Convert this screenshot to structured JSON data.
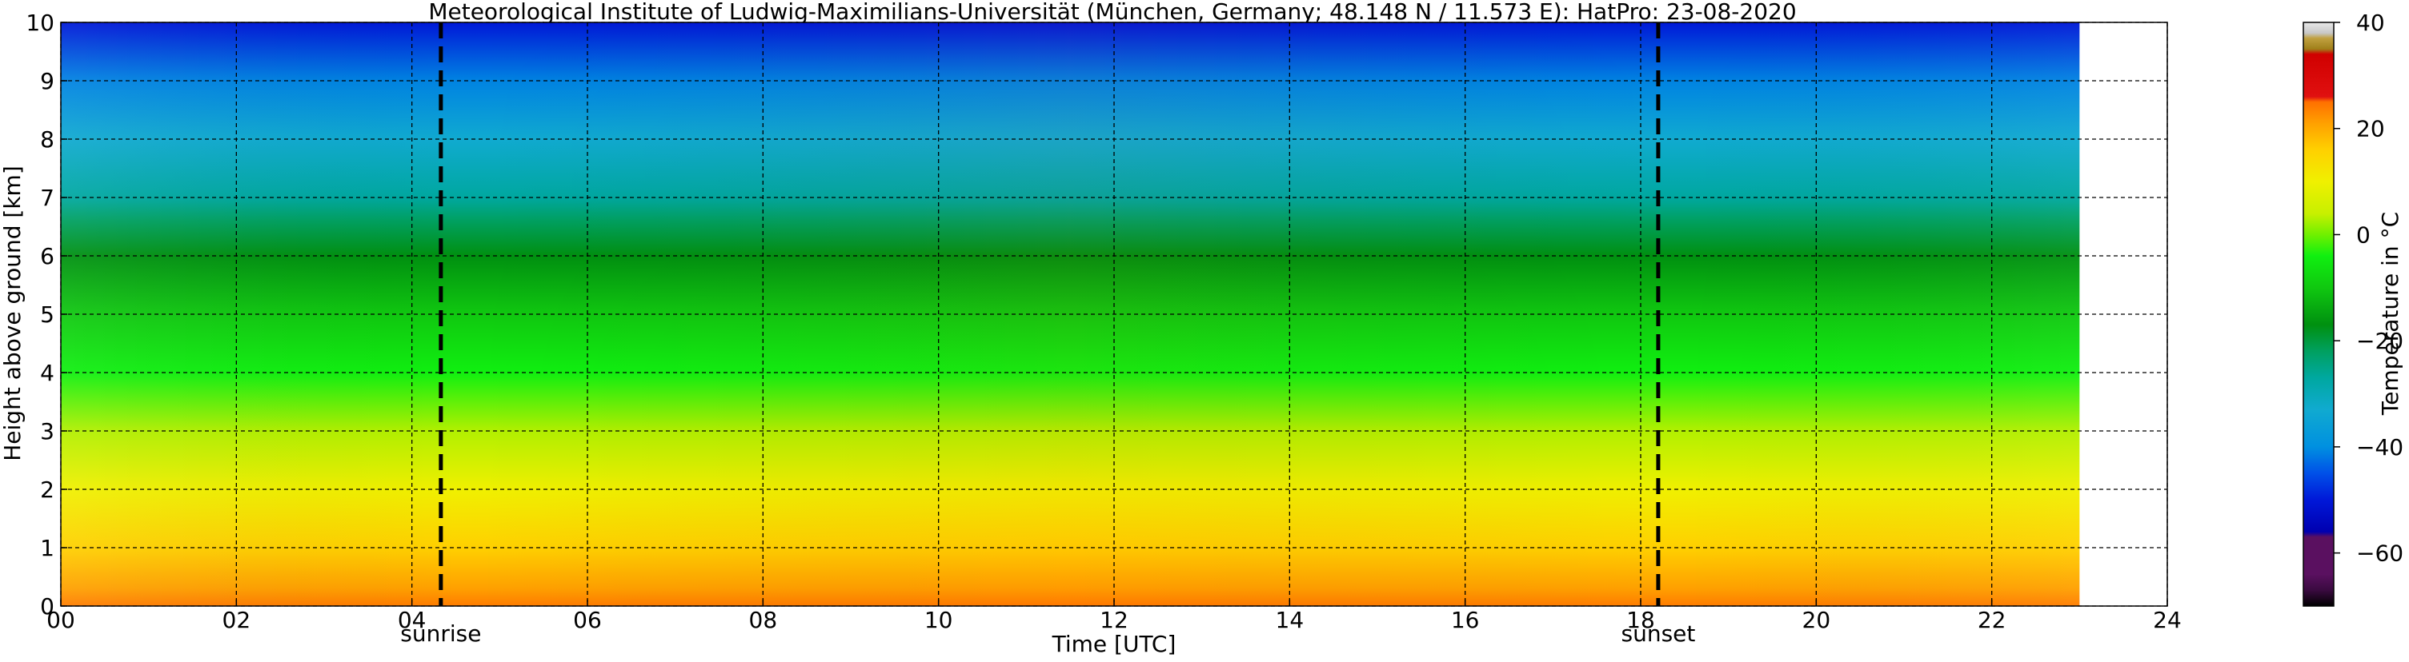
{
  "chart_data": {
    "type": "heatmap",
    "title": "Meteorological Institute of Ludwig-Maximilians-Universität (München, Germany; 48.148 N / 11.573 E):    HatPro: 23-08-2020",
    "xlabel": "Time [UTC]",
    "ylabel": "Height above ground [km]",
    "xlim": [
      0,
      24
    ],
    "ylim": [
      0,
      10
    ],
    "x_ticks": [
      {
        "value": 0,
        "label": "00"
      },
      {
        "value": 2,
        "label": "02"
      },
      {
        "value": 4,
        "label": "04"
      },
      {
        "value": 6,
        "label": "06"
      },
      {
        "value": 8,
        "label": "08"
      },
      {
        "value": 10,
        "label": "10"
      },
      {
        "value": 12,
        "label": "12"
      },
      {
        "value": 14,
        "label": "14"
      },
      {
        "value": 16,
        "label": "16"
      },
      {
        "value": 18,
        "label": "18"
      },
      {
        "value": 20,
        "label": "20"
      },
      {
        "value": 22,
        "label": "22"
      },
      {
        "value": 24,
        "label": "24"
      }
    ],
    "y_ticks": [
      {
        "value": 0,
        "label": "0"
      },
      {
        "value": 1,
        "label": "1"
      },
      {
        "value": 2,
        "label": "2"
      },
      {
        "value": 3,
        "label": "3"
      },
      {
        "value": 4,
        "label": "4"
      },
      {
        "value": 5,
        "label": "5"
      },
      {
        "value": 6,
        "label": "6"
      },
      {
        "value": 7,
        "label": "7"
      },
      {
        "value": 8,
        "label": "8"
      },
      {
        "value": 9,
        "label": "9"
      },
      {
        "value": 10,
        "label": "10"
      }
    ],
    "grid": true,
    "data_time_range": [
      0,
      23
    ],
    "temperature_profile": [
      {
        "height_km": 0.0,
        "temp_c": 24
      },
      {
        "height_km": 0.3,
        "temp_c": 21
      },
      {
        "height_km": 1.0,
        "temp_c": 16
      },
      {
        "height_km": 2.0,
        "temp_c": 10
      },
      {
        "height_km": 3.0,
        "temp_c": 3
      },
      {
        "height_km": 4.0,
        "temp_c": -4
      },
      {
        "height_km": 5.0,
        "temp_c": -10
      },
      {
        "height_km": 6.0,
        "temp_c": -17
      },
      {
        "height_km": 6.6,
        "temp_c": -22
      },
      {
        "height_km": 7.0,
        "temp_c": -27
      },
      {
        "height_km": 8.0,
        "temp_c": -33
      },
      {
        "height_km": 9.0,
        "temp_c": -41
      },
      {
        "height_km": 10.0,
        "temp_c": -50
      }
    ],
    "markers": [
      {
        "label": "sunrise",
        "time": 4.33
      },
      {
        "label": "sunset",
        "time": 18.2
      }
    ],
    "colorbar": {
      "label": "Temperature in °C",
      "range": [
        -70,
        40
      ],
      "ticks": [
        {
          "value": 40,
          "label": "40"
        },
        {
          "value": 20,
          "label": "20"
        },
        {
          "value": 0,
          "label": "0"
        },
        {
          "value": -20,
          "label": "−20"
        },
        {
          "value": -40,
          "label": "−40"
        },
        {
          "value": -60,
          "label": "−60"
        }
      ],
      "color_stops": [
        {
          "value": -70,
          "color": "#000000"
        },
        {
          "value": -67,
          "color": "#3a0a40"
        },
        {
          "value": -64,
          "color": "#5a1060"
        },
        {
          "value": -57,
          "color": "#5a1060"
        },
        {
          "value": -56,
          "color": "#0000b0"
        },
        {
          "value": -50,
          "color": "#0018d8"
        },
        {
          "value": -45,
          "color": "#0050e8"
        },
        {
          "value": -40,
          "color": "#0090e0"
        },
        {
          "value": -33,
          "color": "#10aad0"
        },
        {
          "value": -27,
          "color": "#00a8a0"
        },
        {
          "value": -22,
          "color": "#00a060"
        },
        {
          "value": -17,
          "color": "#009010"
        },
        {
          "value": -10,
          "color": "#10c810"
        },
        {
          "value": -4,
          "color": "#10f010"
        },
        {
          "value": 0,
          "color": "#70f000"
        },
        {
          "value": 4,
          "color": "#c8f000"
        },
        {
          "value": 10,
          "color": "#f0f000"
        },
        {
          "value": 16,
          "color": "#ffd000"
        },
        {
          "value": 21,
          "color": "#ffa000"
        },
        {
          "value": 25,
          "color": "#ff7000"
        },
        {
          "value": 26,
          "color": "#e01010"
        },
        {
          "value": 34,
          "color": "#d00000"
        },
        {
          "value": 35,
          "color": "#a0801a"
        },
        {
          "value": 37,
          "color": "#c0a040"
        },
        {
          "value": 38,
          "color": "#c8c8c8"
        },
        {
          "value": 40,
          "color": "#e8e8e8"
        }
      ]
    }
  }
}
